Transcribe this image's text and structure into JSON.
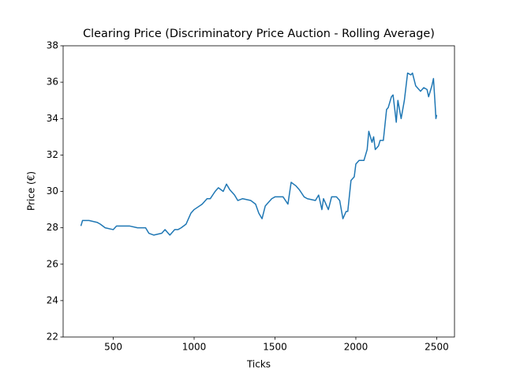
{
  "chart_data": {
    "type": "line",
    "title": "Clearing Price (Discriminatory Price Auction - Rolling Average)",
    "x_label": "Ticks",
    "y_label": "Price (€)",
    "x": [
      300,
      310,
      350,
      400,
      420,
      450,
      500,
      520,
      550,
      600,
      650,
      700,
      720,
      750,
      800,
      820,
      850,
      880,
      900,
      920,
      950,
      980,
      1000,
      1050,
      1080,
      1100,
      1130,
      1150,
      1180,
      1200,
      1220,
      1250,
      1270,
      1300,
      1350,
      1380,
      1400,
      1420,
      1440,
      1450,
      1480,
      1500,
      1550,
      1580,
      1600,
      1630,
      1650,
      1680,
      1700,
      1750,
      1770,
      1790,
      1800,
      1830,
      1850,
      1880,
      1900,
      1920,
      1940,
      1950,
      1970,
      1990,
      2000,
      2020,
      2050,
      2070,
      2080,
      2100,
      2110,
      2120,
      2140,
      2150,
      2170,
      2190,
      2200,
      2220,
      2230,
      2250,
      2260,
      2280,
      2300,
      2320,
      2340,
      2350,
      2370,
      2400,
      2420,
      2440,
      2450,
      2470,
      2480,
      2490,
      2495,
      2500
    ],
    "series": [
      {
        "name": "Clearing Price",
        "color": "#1f77b4",
        "values": [
          28.1,
          28.4,
          28.4,
          28.3,
          28.2,
          28.0,
          27.9,
          28.1,
          28.1,
          28.1,
          28.0,
          28.0,
          27.7,
          27.6,
          27.7,
          27.9,
          27.6,
          27.9,
          27.9,
          28.0,
          28.2,
          28.8,
          29.0,
          29.3,
          29.6,
          29.6,
          30.0,
          30.2,
          30.0,
          30.4,
          30.1,
          29.8,
          29.5,
          29.6,
          29.5,
          29.3,
          28.8,
          28.5,
          29.2,
          29.3,
          29.6,
          29.7,
          29.7,
          29.3,
          30.5,
          30.3,
          30.1,
          29.7,
          29.6,
          29.5,
          29.8,
          29.0,
          29.6,
          29.0,
          29.7,
          29.7,
          29.5,
          28.5,
          28.9,
          28.9,
          30.6,
          30.8,
          31.5,
          31.7,
          31.7,
          32.3,
          33.3,
          32.7,
          33.0,
          32.3,
          32.5,
          32.8,
          32.8,
          34.5,
          34.6,
          35.2,
          35.3,
          33.8,
          35.0,
          34.0,
          35.0,
          36.5,
          36.4,
          36.5,
          35.8,
          35.5,
          35.7,
          35.6,
          35.2,
          35.8,
          36.2,
          34.8,
          34.0,
          34.2
        ]
      }
    ],
    "xlim": [
      190,
      2610
    ],
    "xticks": [
      500,
      1000,
      1500,
      2000,
      2500
    ],
    "ylim": [
      22,
      38
    ],
    "yticks": [
      22,
      24,
      26,
      28,
      30,
      32,
      34,
      36,
      38
    ]
  }
}
